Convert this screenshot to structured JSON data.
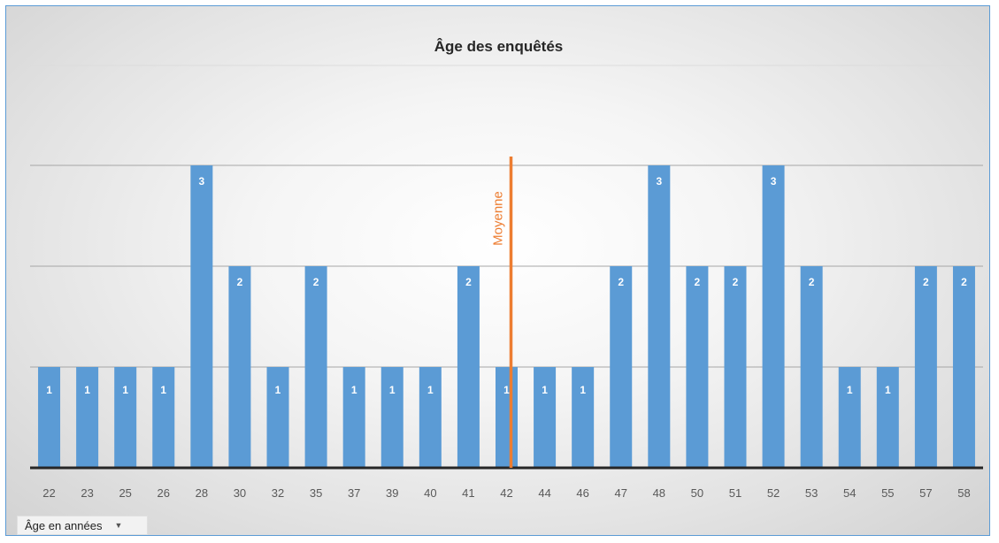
{
  "chart_data": {
    "type": "bar",
    "title": "Âge des enquêtés",
    "xlabel": "",
    "ylabel": "",
    "categories": [
      "22",
      "23",
      "25",
      "26",
      "28",
      "30",
      "32",
      "35",
      "37",
      "39",
      "40",
      "41",
      "42",
      "44",
      "46",
      "47",
      "48",
      "50",
      "51",
      "52",
      "53",
      "54",
      "55",
      "57",
      "58"
    ],
    "values": [
      1,
      1,
      1,
      1,
      3,
      2,
      1,
      2,
      1,
      1,
      1,
      2,
      1,
      1,
      1,
      2,
      3,
      2,
      2,
      3,
      2,
      1,
      1,
      2,
      2
    ],
    "ylim": [
      0,
      4
    ],
    "grid": true,
    "data_labels": true,
    "bar_color": "#5b9bd5",
    "annotations": [
      {
        "type": "vertical-line",
        "category": "42",
        "label": "Moyenne",
        "color": "#ed7d31"
      }
    ]
  },
  "filter_button": {
    "label": "Âge en années",
    "icon": "dropdown-arrow-icon"
  }
}
